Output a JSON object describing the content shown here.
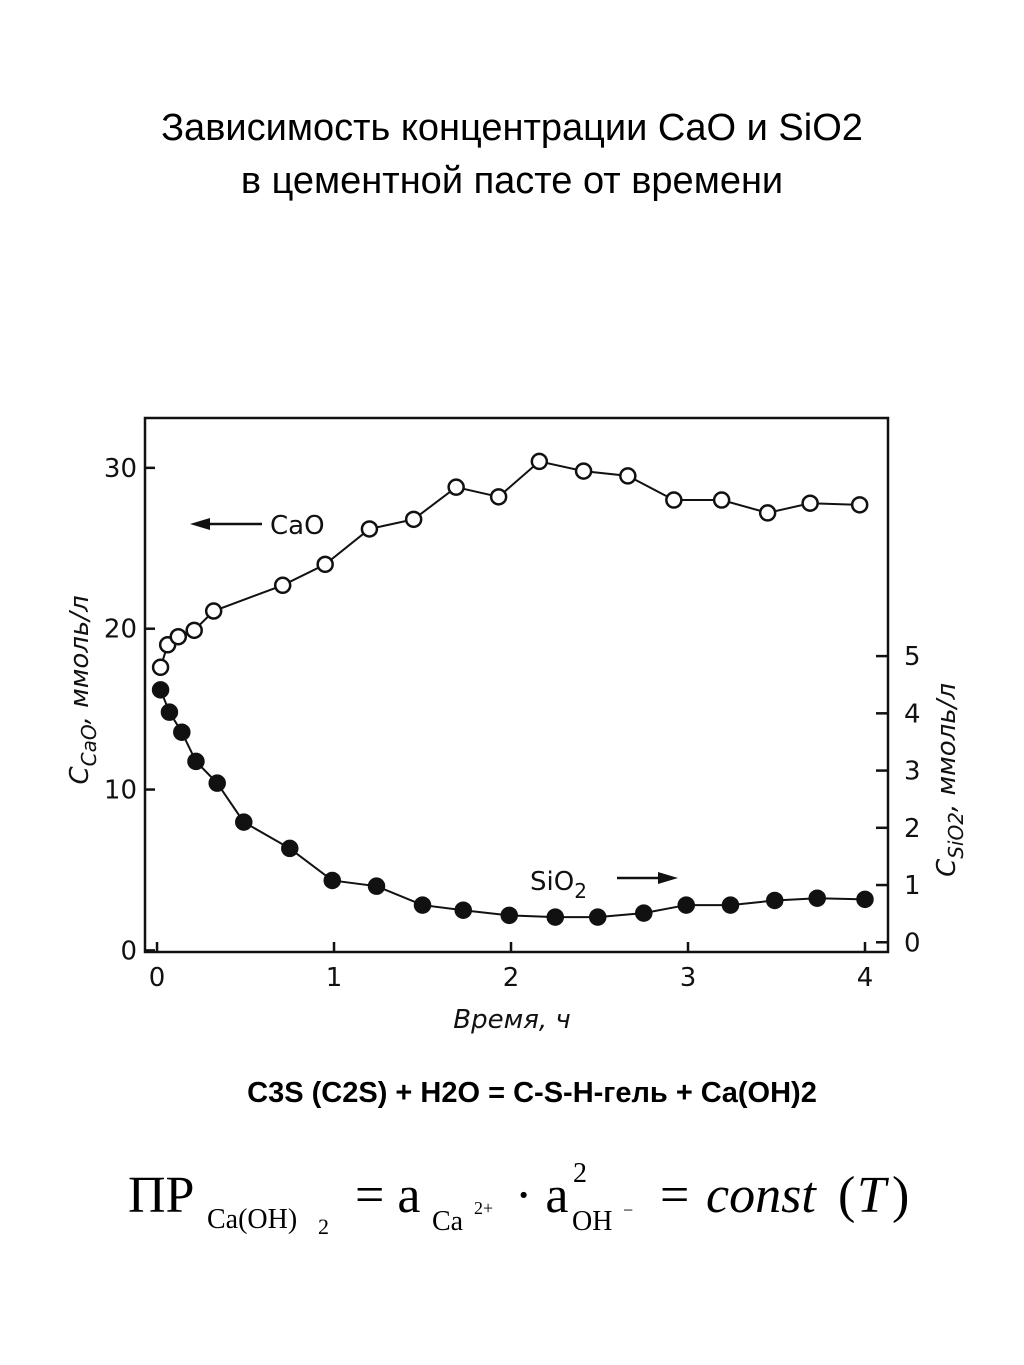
{
  "slide": {
    "title_lines": [
      "Зависимость концентрации CaO и SiO2",
      "в цементной пасте от времени"
    ],
    "equation": "C3S (C2S) + H2O = C-S-H-гель + Ca(OH)2",
    "formula": [
      "ПР",
      "Ca(OH)",
      "2",
      "= a",
      "Ca",
      "2+",
      "· a",
      "2",
      "OH",
      "−",
      "=",
      "const",
      "(",
      "T",
      ")"
    ]
  },
  "chart_data": {
    "type": "scatter",
    "x_label": "Время, ч",
    "y_label": {
      "main": "C",
      "sub": "CaO",
      "unit": ", ммоль/л"
    },
    "y2_label": {
      "main": "C",
      "sub": "SiO2",
      "unit": ", ммоль/л"
    },
    "annotations": [
      "CaO",
      "SiO",
      "2"
    ],
    "series": [
      {
        "name": "CaO",
        "color": "#111111",
        "filled": false,
        "x": [
          0.02,
          0.06,
          0.12,
          0.21,
          0.32,
          0.71,
          0.95,
          1.2,
          1.45,
          1.69,
          1.93,
          2.16,
          2.41,
          2.66,
          2.92,
          3.19,
          3.45,
          3.69,
          3.97
        ],
        "values": [
          17.6,
          19.0,
          19.5,
          19.9,
          21.1,
          22.7,
          24.0,
          26.2,
          26.8,
          28.8,
          28.2,
          30.4,
          29.8,
          29.5,
          28.0,
          28.0,
          27.2,
          27.8,
          27.7
        ]
      },
      {
        "name": "SiO2",
        "color": "#111111",
        "filled": true,
        "axis": "y2",
        "x": [
          0.02,
          0.07,
          0.14,
          0.22,
          0.34,
          0.49,
          0.75,
          0.99,
          1.24,
          1.5,
          1.73,
          1.99,
          2.25,
          2.49,
          2.75,
          2.99,
          3.24,
          3.49,
          3.73,
          4.0
        ],
        "values": [
          4.41,
          4.02,
          3.67,
          3.16,
          2.78,
          2.1,
          1.64,
          1.08,
          0.98,
          0.65,
          0.56,
          0.47,
          0.44,
          0.44,
          0.51,
          0.65,
          0.65,
          0.73,
          0.77,
          0.75
        ]
      }
    ],
    "xlim": [
      -0.068,
      4.13
    ],
    "xticks": [
      0,
      1,
      2,
      3,
      4
    ],
    "ylim": [
      -0.1,
      33.1
    ],
    "yticks": [
      0,
      10,
      20,
      30
    ],
    "y2lim": [
      -0.17,
      9.16
    ],
    "y2ticks": [
      0,
      1,
      2,
      3,
      4,
      5
    ]
  }
}
